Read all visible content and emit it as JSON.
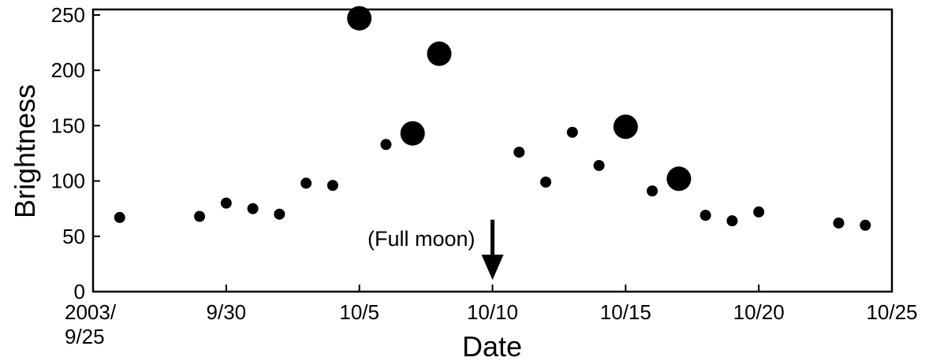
{
  "chart_data": {
    "type": "scatter",
    "xlabel": "Date",
    "ylabel": "Brightness",
    "x_start_date": "2003-09-25",
    "xlim": [
      "2003-09-25",
      "2003-10-25"
    ],
    "ylim": [
      0,
      255
    ],
    "grid": false,
    "legend": "none",
    "x_tick_labels": [
      {
        "date": "2003-09-25",
        "lines": [
          "2003/",
          "9/25"
        ]
      },
      {
        "date": "2003-09-30",
        "lines": [
          "9/30"
        ]
      },
      {
        "date": "2003-10-05",
        "lines": [
          "10/5"
        ]
      },
      {
        "date": "2003-10-10",
        "lines": [
          "10/10"
        ]
      },
      {
        "date": "2003-10-15",
        "lines": [
          "10/15"
        ]
      },
      {
        "date": "2003-10-20",
        "lines": [
          "10/20"
        ]
      },
      {
        "date": "2003-10-25",
        "lines": [
          "10/25"
        ]
      }
    ],
    "y_ticks": [
      0,
      50,
      100,
      150,
      200,
      250
    ],
    "points": [
      {
        "x": "2003-09-26",
        "y": 67,
        "size": "small"
      },
      {
        "x": "2003-09-29",
        "y": 68,
        "size": "small"
      },
      {
        "x": "2003-09-30",
        "y": 80,
        "size": "small"
      },
      {
        "x": "2003-10-01",
        "y": 75,
        "size": "small"
      },
      {
        "x": "2003-10-02",
        "y": 70,
        "size": "small"
      },
      {
        "x": "2003-10-03",
        "y": 98,
        "size": "small"
      },
      {
        "x": "2003-10-04",
        "y": 96,
        "size": "small"
      },
      {
        "x": "2003-10-05",
        "y": 247,
        "size": "large"
      },
      {
        "x": "2003-10-06",
        "y": 133,
        "size": "small"
      },
      {
        "x": "2003-10-07",
        "y": 143,
        "size": "large"
      },
      {
        "x": "2003-10-08",
        "y": 215,
        "size": "large"
      },
      {
        "x": "2003-10-11",
        "y": 126,
        "size": "small"
      },
      {
        "x": "2003-10-12",
        "y": 99,
        "size": "small"
      },
      {
        "x": "2003-10-13",
        "y": 144,
        "size": "small"
      },
      {
        "x": "2003-10-14",
        "y": 114,
        "size": "small"
      },
      {
        "x": "2003-10-15",
        "y": 149,
        "size": "large"
      },
      {
        "x": "2003-10-16",
        "y": 91,
        "size": "small"
      },
      {
        "x": "2003-10-17",
        "y": 102,
        "size": "large"
      },
      {
        "x": "2003-10-18",
        "y": 69,
        "size": "small"
      },
      {
        "x": "2003-10-19",
        "y": 64,
        "size": "small"
      },
      {
        "x": "2003-10-20",
        "y": 72,
        "size": "small"
      },
      {
        "x": "2003-10-23",
        "y": 62,
        "size": "small"
      },
      {
        "x": "2003-10-24",
        "y": 60,
        "size": "small"
      }
    ],
    "annotations": [
      {
        "text": "(Full moon)",
        "x": "2003-10-10",
        "arrow_from_y": 65,
        "arrow_to_y": 12
      }
    ],
    "colors": {
      "marker": "#000000",
      "axis": "#000000",
      "background": "#ffffff"
    }
  }
}
